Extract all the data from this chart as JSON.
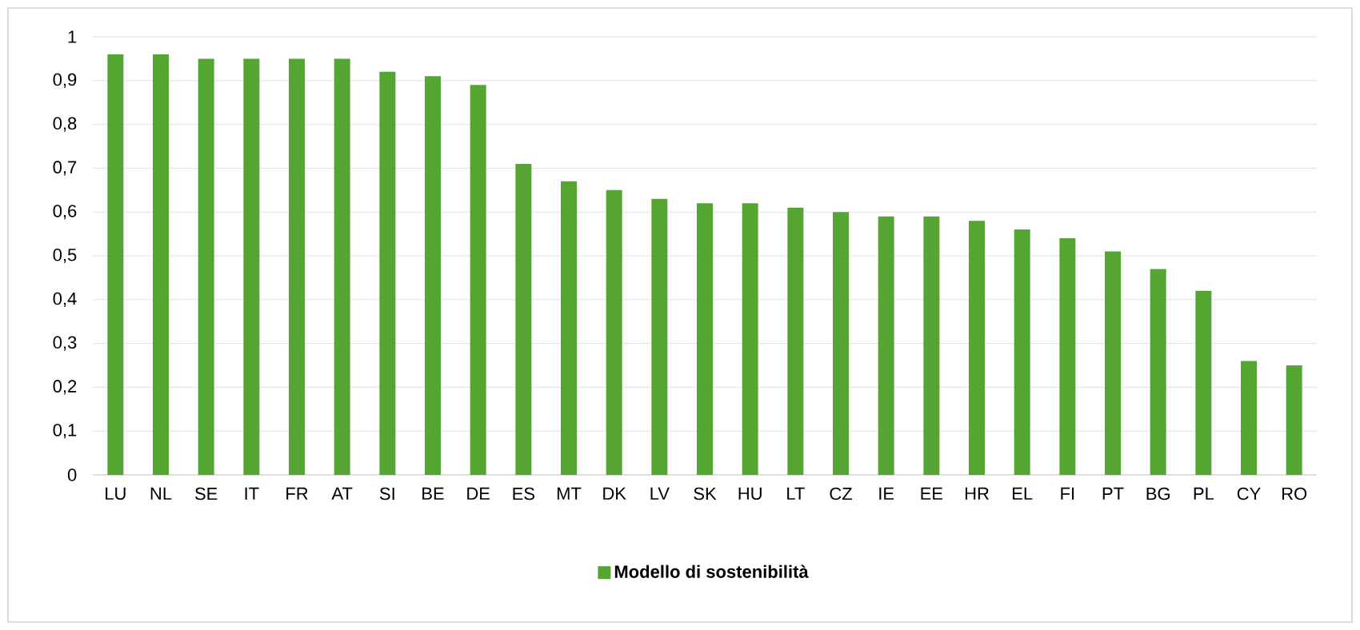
{
  "chart_data": {
    "type": "bar",
    "categories": [
      "LU",
      "NL",
      "SE",
      "IT",
      "FR",
      "AT",
      "SI",
      "BE",
      "DE",
      "ES",
      "MT",
      "DK",
      "LV",
      "SK",
      "HU",
      "LT",
      "CZ",
      "IE",
      "EE",
      "HR",
      "EL",
      "FI",
      "PT",
      "BG",
      "PL",
      "CY",
      "RO"
    ],
    "series": [
      {
        "name": "Modello di sostenibilità",
        "color": "#55a532",
        "values": [
          0.96,
          0.96,
          0.95,
          0.95,
          0.95,
          0.95,
          0.92,
          0.91,
          0.89,
          0.71,
          0.67,
          0.65,
          0.63,
          0.62,
          0.62,
          0.61,
          0.6,
          0.59,
          0.59,
          0.58,
          0.56,
          0.54,
          0.51,
          0.47,
          0.42,
          0.26,
          0.25
        ]
      }
    ],
    "ylim": [
      0,
      1
    ],
    "yticks": [
      0,
      {
        "value": 0.1,
        "label": "0,1"
      },
      {
        "value": 0.2,
        "label": "0,2"
      },
      {
        "value": 0.3,
        "label": "0,3"
      },
      {
        "value": 0.4,
        "label": "0,4"
      },
      {
        "value": 0.5,
        "label": "0,5"
      },
      {
        "value": 0.6,
        "label": "0,6"
      },
      {
        "value": 0.7,
        "label": "0,7"
      },
      {
        "value": 0.8,
        "label": "0,8"
      },
      {
        "value": 0.9,
        "label": "0,9"
      },
      1
    ],
    "grid": "y",
    "legend": "bottom"
  }
}
